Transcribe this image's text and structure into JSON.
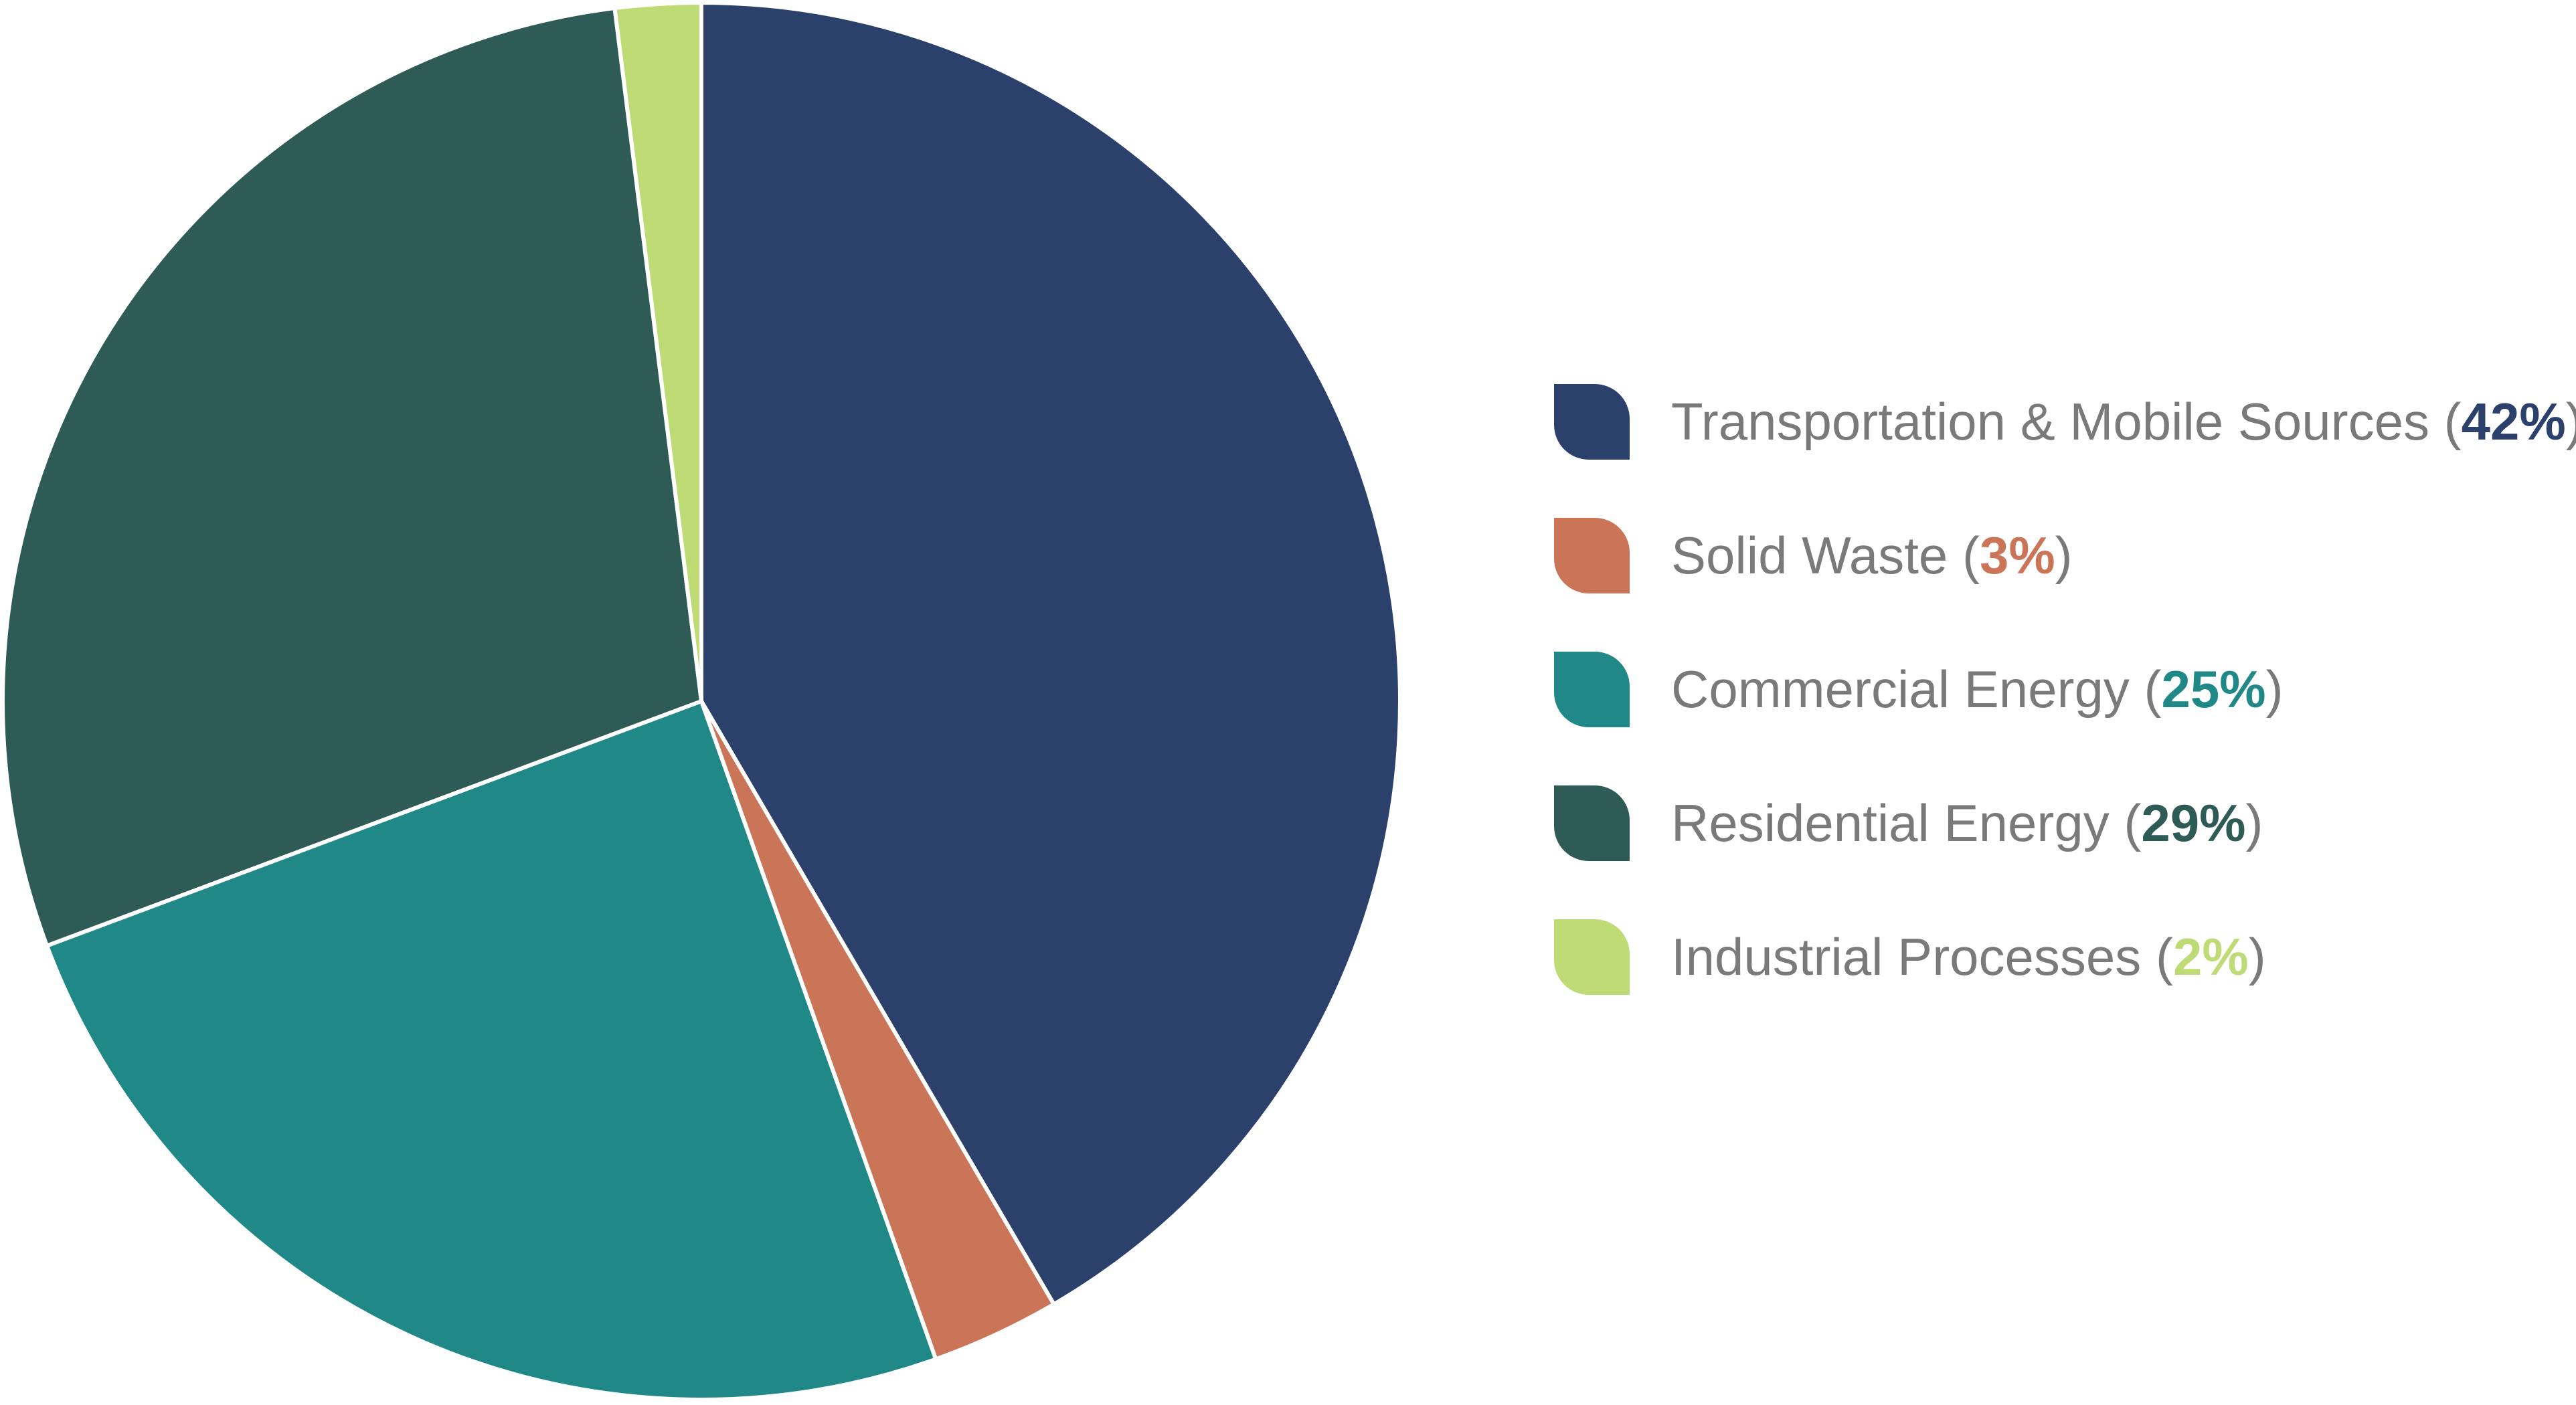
{
  "chart_data": {
    "type": "pie",
    "start_angle_deg": 0,
    "direction": "clockwise",
    "slices": [
      {
        "label": "Transportation & Mobile Sources",
        "value": 42,
        "display": "42%",
        "color": "#2b416b"
      },
      {
        "label": "Solid Waste",
        "value": 3,
        "display": "3%",
        "color": "#cb7558"
      },
      {
        "label": "Commercial Energy",
        "value": 25,
        "display": "25%",
        "color": "#208987"
      },
      {
        "label": "Residential Energy",
        "value": 29,
        "display": "29%",
        "color": "#2f5b56"
      },
      {
        "label": "Industrial Processes",
        "value": 2,
        "display": "2%",
        "color": "#bfdb75"
      }
    ],
    "legend_position": "right",
    "slice_border_color": "#ffffff"
  }
}
